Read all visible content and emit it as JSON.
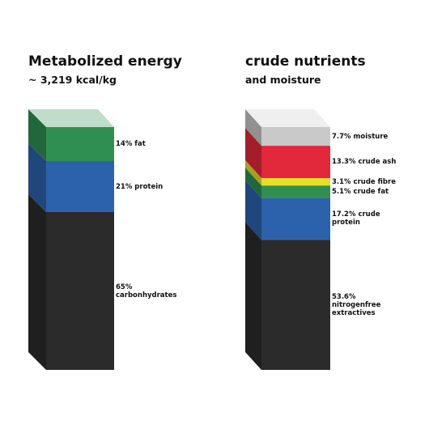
{
  "chart_data": [
    {
      "type": "bar",
      "stacked": true,
      "title": "Metabolized energy",
      "subtitle": "~ 3,219 kcal/kg",
      "values": [
        14,
        21,
        65
      ],
      "value_labels": [
        "14% fat",
        "21% protein",
        "65% carbonhydrates"
      ],
      "colors": [
        "#2f8f52",
        "#2c62ab",
        "#2b2b2b"
      ]
    },
    {
      "type": "bar",
      "stacked": true,
      "title": "crude nutrients",
      "subtitle": "and moisture",
      "values": [
        7.7,
        13.3,
        3.1,
        5.1,
        17.2,
        53.6
      ],
      "value_labels": [
        "7.7% moisture",
        "13.3% crude ash",
        "3.1% crude fibre",
        "5.1% crude fat",
        "17.2% crude protein",
        "53.6% nitrogenfree extractives"
      ],
      "colors": [
        "#c9c9c9",
        "#e2283b",
        "#e3df2b",
        "#2f8f52",
        "#2c62ab",
        "#2b2b2b"
      ]
    }
  ]
}
